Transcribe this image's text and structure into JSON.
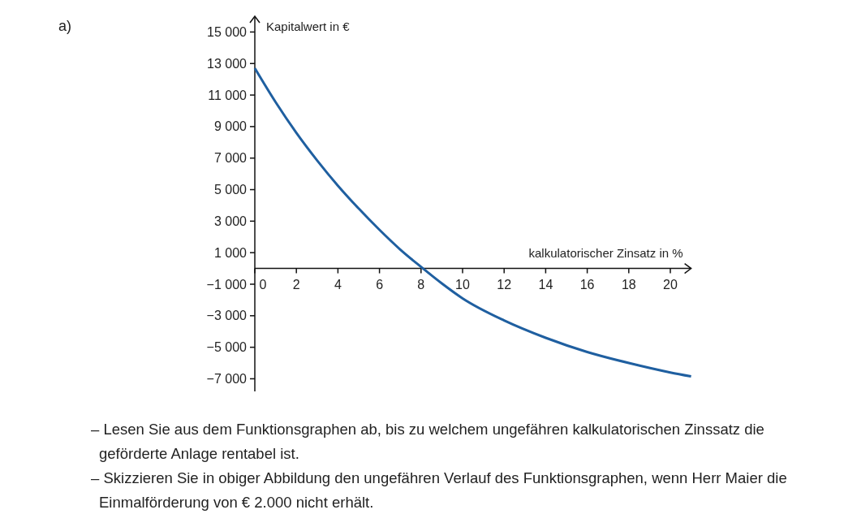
{
  "chart_data": {
    "type": "line",
    "xlabel": "kalkulatorischer Zinsatz in %",
    "ylabel": "Kapitalwert in €",
    "x": [
      0,
      1,
      2,
      3,
      4,
      5,
      6,
      7,
      8,
      9,
      10,
      12,
      14,
      16,
      18,
      20,
      21
    ],
    "series": [
      {
        "color": "#1f5fa0",
        "values": [
          12700,
          10550,
          8600,
          6850,
          5250,
          3800,
          2450,
          1200,
          100,
          -950,
          -1900,
          -3300,
          -4400,
          -5300,
          -6000,
          -6600,
          -6850
        ]
      }
    ],
    "xlim": [
      0,
      21
    ],
    "ylim": [
      -7800,
      16000
    ],
    "xticks": [
      0,
      2,
      4,
      6,
      8,
      10,
      12,
      14,
      16,
      18,
      20
    ],
    "yticks": [
      {
        "value": 15000,
        "label": "15 000"
      },
      {
        "value": 13000,
        "label": "13 000"
      },
      {
        "value": 11000,
        "label": "11 000"
      },
      {
        "value": 9000,
        "label": "9 000"
      },
      {
        "value": 7000,
        "label": "7 000"
      },
      {
        "value": 5000,
        "label": "5 000"
      },
      {
        "value": 3000,
        "label": "3 000"
      },
      {
        "value": 1000,
        "label": "1 000"
      },
      {
        "value": -1000,
        "label": "−1 000"
      },
      {
        "value": -3000,
        "label": "−3 000"
      },
      {
        "value": -5000,
        "label": "−5 000"
      },
      {
        "value": -7000,
        "label": "−7 000"
      }
    ],
    "grid": false,
    "marker": "none",
    "line_style": "solid",
    "annotations": [
      "a)",
      "– Lesen Sie aus dem Funktionsgraphen ab, bis zu welchem ungefähren kalkulatorischen Zinssatz die geförderte Anlage rentabel ist.",
      "– Skizzieren Sie in obiger Abbildung den ungefähren Verlauf des Funktionsgraphen, wenn Herr Maier die Einmalförderung von € 2.000 nicht erhält."
    ]
  }
}
